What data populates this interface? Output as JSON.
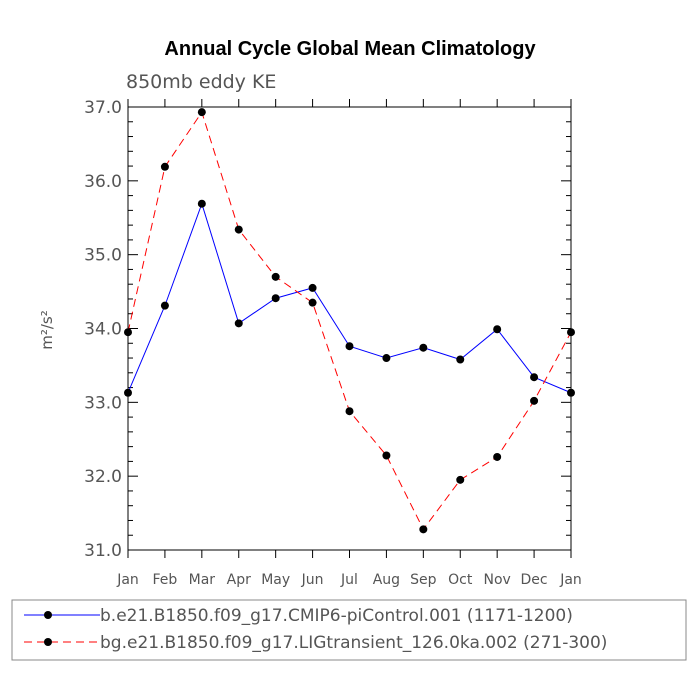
{
  "chart_data": {
    "type": "line",
    "title": "Annual Cycle Global Mean Climatology",
    "subtitle": "850mb eddy KE",
    "ylabel": "m²/s²",
    "ylim": [
      31.0,
      37.0
    ],
    "yticks": [
      "31.0",
      "32.0",
      "33.0",
      "34.0",
      "35.0",
      "36.0",
      "37.0"
    ],
    "categories": [
      "Jan",
      "Feb",
      "Mar",
      "Apr",
      "May",
      "Jun",
      "Jul",
      "Aug",
      "Sep",
      "Oct",
      "Nov",
      "Dec",
      "Jan"
    ],
    "series": [
      {
        "name": "b.e21.B1850.f09_g17.CMIP6-piControl.001 (1171-1200)",
        "color": "#0000ff",
        "dash": "solid",
        "values": [
          33.13,
          34.31,
          35.69,
          34.07,
          34.41,
          34.55,
          33.76,
          33.6,
          33.74,
          33.58,
          33.99,
          33.34,
          33.13
        ]
      },
      {
        "name": "bg.e21.B1850.f09_g17.LIGtransient_126.0ka.002 (271-300)",
        "color": "#ff0000",
        "dash": "dashed",
        "values": [
          33.95,
          36.19,
          36.93,
          35.34,
          34.7,
          34.35,
          32.88,
          32.28,
          31.28,
          31.95,
          32.26,
          33.02,
          33.95
        ]
      }
    ]
  }
}
